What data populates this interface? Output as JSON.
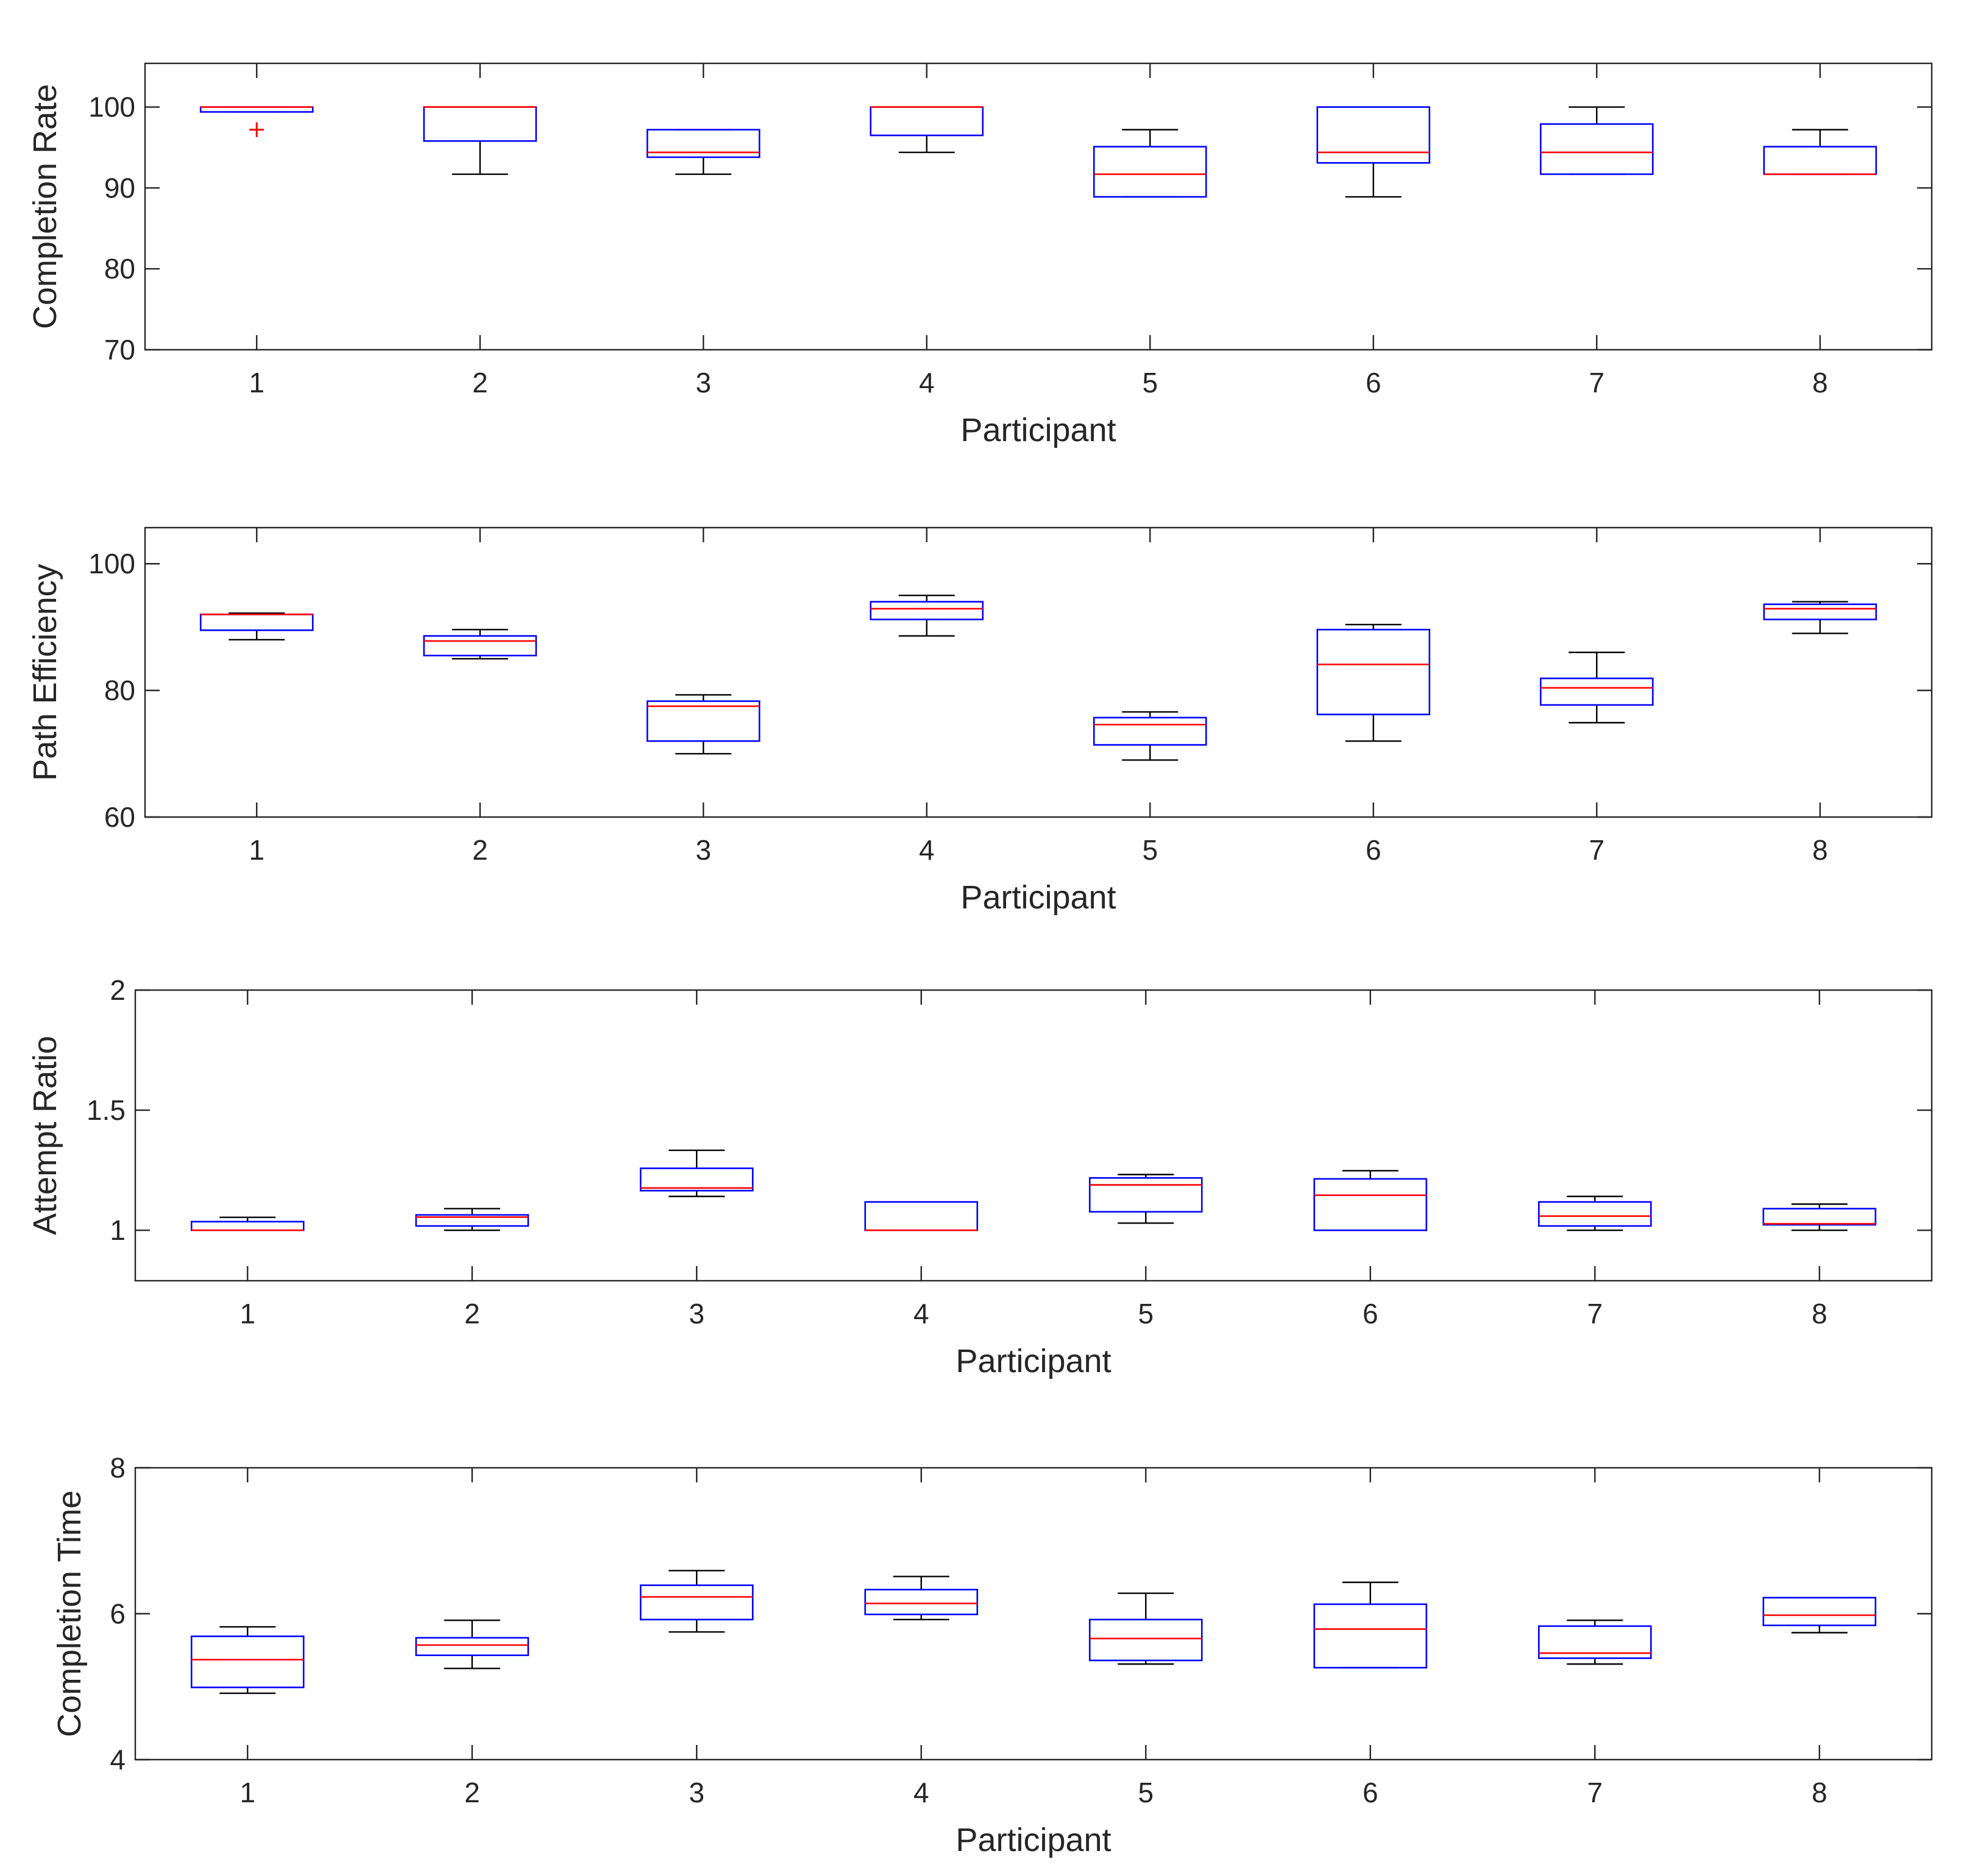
{
  "chart_data": [
    {
      "type": "boxplot",
      "xlabel": "Participant",
      "ylabel": "Completion Rate",
      "categories": [
        "1",
        "2",
        "3",
        "4",
        "5",
        "6",
        "7",
        "8"
      ],
      "ylim": [
        70,
        105.4
      ],
      "yticks": [
        70,
        80,
        90,
        100
      ],
      "ytick_labels": [
        "70",
        "80",
        "90",
        "100"
      ],
      "boxes": [
        {
          "participant": "1",
          "whisker_low": 99.4,
          "q1": 99.4,
          "median": 100,
          "q3": 100,
          "whisker_high": 100,
          "outliers": [
            97.2
          ]
        },
        {
          "participant": "2",
          "whisker_low": 91.7,
          "q1": 95.8,
          "median": 100,
          "q3": 100,
          "whisker_high": 100,
          "outliers": []
        },
        {
          "participant": "3",
          "whisker_low": 91.7,
          "q1": 93.8,
          "median": 94.4,
          "q3": 97.2,
          "whisker_high": 97.2,
          "outliers": []
        },
        {
          "participant": "4",
          "whisker_low": 94.4,
          "q1": 96.5,
          "median": 100,
          "q3": 100,
          "whisker_high": 100,
          "outliers": []
        },
        {
          "participant": "5",
          "whisker_low": 88.9,
          "q1": 88.9,
          "median": 91.7,
          "q3": 95.1,
          "whisker_high": 97.2,
          "outliers": []
        },
        {
          "participant": "6",
          "whisker_low": 88.9,
          "q1": 93.1,
          "median": 94.4,
          "q3": 100,
          "whisker_high": 100,
          "outliers": []
        },
        {
          "participant": "7",
          "whisker_low": 91.7,
          "q1": 91.7,
          "median": 94.4,
          "q3": 97.9,
          "whisker_high": 100,
          "outliers": []
        },
        {
          "participant": "8",
          "whisker_low": 91.7,
          "q1": 91.7,
          "median": 91.7,
          "q3": 95.1,
          "whisker_high": 97.2,
          "outliers": []
        }
      ]
    },
    {
      "type": "boxplot",
      "xlabel": "Participant",
      "ylabel": "Path Efficiency",
      "categories": [
        "1",
        "2",
        "3",
        "4",
        "5",
        "6",
        "7",
        "8"
      ],
      "ylim": [
        60,
        105.7
      ],
      "yticks": [
        60,
        80,
        100
      ],
      "ytick_labels": [
        "60",
        "80",
        "100"
      ],
      "boxes": [
        {
          "participant": "1",
          "whisker_low": 88.0,
          "q1": 89.5,
          "median": 92.0,
          "q3": 92.0,
          "whisker_high": 92.2,
          "outliers": []
        },
        {
          "participant": "2",
          "whisker_low": 85.0,
          "q1": 85.5,
          "median": 87.8,
          "q3": 88.6,
          "whisker_high": 89.6,
          "outliers": []
        },
        {
          "participant": "3",
          "whisker_low": 70.0,
          "q1": 72.0,
          "median": 77.5,
          "q3": 78.3,
          "whisker_high": 79.3,
          "outliers": []
        },
        {
          "participant": "4",
          "whisker_low": 88.6,
          "q1": 91.2,
          "median": 92.9,
          "q3": 94.0,
          "whisker_high": 95.0,
          "outliers": []
        },
        {
          "participant": "5",
          "whisker_low": 69.0,
          "q1": 71.4,
          "median": 74.6,
          "q3": 75.7,
          "whisker_high": 76.6,
          "outliers": []
        },
        {
          "participant": "6",
          "whisker_low": 72.0,
          "q1": 76.2,
          "median": 84.1,
          "q3": 89.6,
          "whisker_high": 90.4,
          "outliers": []
        },
        {
          "participant": "7",
          "whisker_low": 74.9,
          "q1": 77.7,
          "median": 80.4,
          "q3": 81.9,
          "whisker_high": 86.0,
          "outliers": []
        },
        {
          "participant": "8",
          "whisker_low": 89.0,
          "q1": 91.2,
          "median": 92.9,
          "q3": 93.6,
          "whisker_high": 94.0,
          "outliers": []
        }
      ]
    },
    {
      "type": "boxplot",
      "xlabel": "Participant",
      "ylabel": "Attempt Ratio",
      "categories": [
        "1",
        "2",
        "3",
        "4",
        "5",
        "6",
        "7",
        "8"
      ],
      "ylim": [
        0.79,
        2
      ],
      "yticks": [
        1,
        1.5,
        2
      ],
      "ytick_labels": [
        "1",
        "1.5",
        "2"
      ],
      "boxes": [
        {
          "participant": "1",
          "whisker_low": 1.0,
          "q1": 1.0,
          "median": 1.0,
          "q3": 1.036,
          "whisker_high": 1.054,
          "outliers": []
        },
        {
          "participant": "2",
          "whisker_low": 1.0,
          "q1": 1.018,
          "median": 1.055,
          "q3": 1.064,
          "whisker_high": 1.09,
          "outliers": []
        },
        {
          "participant": "3",
          "whisker_low": 1.141,
          "q1": 1.165,
          "median": 1.176,
          "q3": 1.258,
          "whisker_high": 1.333,
          "outliers": []
        },
        {
          "participant": "4",
          "whisker_low": 1.0,
          "q1": 1.0,
          "median": 1.0,
          "q3": 1.118,
          "whisker_high": 1.118,
          "outliers": []
        },
        {
          "participant": "5",
          "whisker_low": 1.03,
          "q1": 1.077,
          "median": 1.189,
          "q3": 1.218,
          "whisker_high": 1.232,
          "outliers": []
        },
        {
          "participant": "6",
          "whisker_low": 1.0,
          "q1": 1.0,
          "median": 1.146,
          "q3": 1.214,
          "whisker_high": 1.248,
          "outliers": []
        },
        {
          "participant": "7",
          "whisker_low": 1.0,
          "q1": 1.018,
          "median": 1.059,
          "q3": 1.118,
          "whisker_high": 1.141,
          "outliers": []
        },
        {
          "participant": "8",
          "whisker_low": 1.0,
          "q1": 1.023,
          "median": 1.027,
          "q3": 1.09,
          "whisker_high": 1.109,
          "outliers": []
        }
      ]
    },
    {
      "type": "boxplot",
      "xlabel": "Participant",
      "ylabel": "Completion Time",
      "categories": [
        "1",
        "2",
        "3",
        "4",
        "5",
        "6",
        "7",
        "8"
      ],
      "ylim": [
        4,
        8
      ],
      "yticks": [
        4,
        6,
        8
      ],
      "ytick_labels": [
        "4",
        "6",
        "8"
      ],
      "boxes": [
        {
          "participant": "1",
          "whisker_low": 4.91,
          "q1": 4.99,
          "median": 5.37,
          "q3": 5.69,
          "whisker_high": 5.82,
          "outliers": []
        },
        {
          "participant": "2",
          "whisker_low": 5.25,
          "q1": 5.43,
          "median": 5.57,
          "q3": 5.67,
          "whisker_high": 5.91,
          "outliers": []
        },
        {
          "participant": "3",
          "whisker_low": 5.75,
          "q1": 5.92,
          "median": 6.23,
          "q3": 6.39,
          "whisker_high": 6.59,
          "outliers": []
        },
        {
          "participant": "4",
          "whisker_low": 5.92,
          "q1": 5.99,
          "median": 6.14,
          "q3": 6.33,
          "whisker_high": 6.51,
          "outliers": []
        },
        {
          "participant": "5",
          "whisker_low": 5.31,
          "q1": 5.36,
          "median": 5.66,
          "q3": 5.92,
          "whisker_high": 6.28,
          "outliers": []
        },
        {
          "participant": "6",
          "whisker_low": 5.26,
          "q1": 5.26,
          "median": 5.79,
          "q3": 6.13,
          "whisker_high": 6.43,
          "outliers": []
        },
        {
          "participant": "7",
          "whisker_low": 5.31,
          "q1": 5.39,
          "median": 5.46,
          "q3": 5.83,
          "whisker_high": 5.91,
          "outliers": []
        },
        {
          "participant": "8",
          "whisker_low": 5.74,
          "q1": 5.84,
          "median": 5.98,
          "q3": 6.22,
          "whisker_high": 6.22,
          "outliers": []
        }
      ]
    }
  ],
  "colors": {
    "box": "#0000ff",
    "median": "#ff0000",
    "whisker": "#000000",
    "outlier": "#ff0000",
    "axes": "#262626"
  }
}
